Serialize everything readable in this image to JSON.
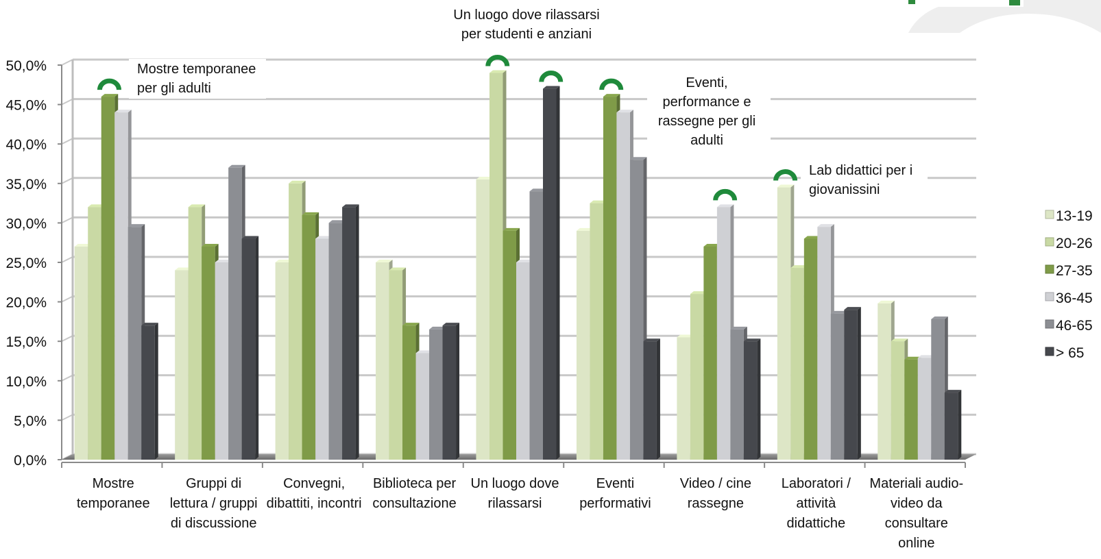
{
  "chart_data": {
    "type": "bar",
    "categories": [
      [
        "Mostre",
        "temporanee"
      ],
      [
        "Gruppi di",
        "lettura / gruppi",
        "di discussione"
      ],
      [
        "Convegni,",
        "dibattiti, incontri"
      ],
      [
        "Biblioteca per",
        "consultazione"
      ],
      [
        "Un luogo dove",
        "rilassarsi"
      ],
      [
        "Eventi",
        "performativi"
      ],
      [
        "Video / cine",
        "rassegne"
      ],
      [
        "Laboratori /",
        "attività",
        "didattiche"
      ],
      [
        "Materiali audio-",
        "video da",
        "consultare",
        "online"
      ]
    ],
    "series": [
      {
        "name": "13-19",
        "color": "#dde6c6",
        "values": [
          27,
          24,
          25,
          25,
          35.5,
          29,
          15.5,
          34.5,
          19.8
        ]
      },
      {
        "name": "20-26",
        "color": "#c9d9a4",
        "values": [
          32,
          32,
          35,
          24,
          49,
          32.5,
          21,
          24.3,
          15
        ]
      },
      {
        "name": "27-35",
        "color": "#7f9b48",
        "values": [
          46,
          27,
          31,
          17,
          29,
          46,
          27,
          28,
          12.7
        ]
      },
      {
        "name": "36-45",
        "color": "#cfd0d4",
        "values": [
          44,
          25,
          28,
          13.5,
          25,
          44,
          32,
          29.5,
          12.9
        ]
      },
      {
        "name": "46-65",
        "color": "#8c8e93",
        "values": [
          29.5,
          37,
          30,
          16.5,
          34,
          38,
          16.5,
          18.5,
          17.8
        ]
      },
      {
        "name": "> 65",
        "color": "#46484d",
        "values": [
          17,
          28,
          32,
          17,
          47,
          15,
          15,
          19,
          8.5
        ]
      }
    ],
    "yticks": [
      "0,0%",
      "5,0%",
      "10,0%",
      "15,0%",
      "20,0%",
      "25,0%",
      "30,0%",
      "35,0%",
      "40,0%",
      "45,0%",
      "50,0%"
    ],
    "ylim": [
      0,
      50
    ],
    "grid": true,
    "legend_position": "right",
    "annotations": [
      {
        "lines": [
          "Mostre temporanee",
          "per gli adulti"
        ],
        "category": 0,
        "series": 2
      },
      {
        "lines": [
          "Un luogo dove rilassarsi",
          "per studenti e anziani"
        ],
        "category": 4,
        "series": 1
      },
      {
        "lines": [
          "Eventi,",
          "performance e",
          "rassegne per gli",
          "adulti"
        ],
        "category": 5,
        "series": 2
      },
      {
        "lines": [
          "Lab didattici per i",
          "giovanissini"
        ],
        "category": 7,
        "series": 0
      }
    ],
    "extra_markers": [
      {
        "category": 4,
        "series": 5
      },
      {
        "category": 6,
        "series": 3
      }
    ]
  }
}
